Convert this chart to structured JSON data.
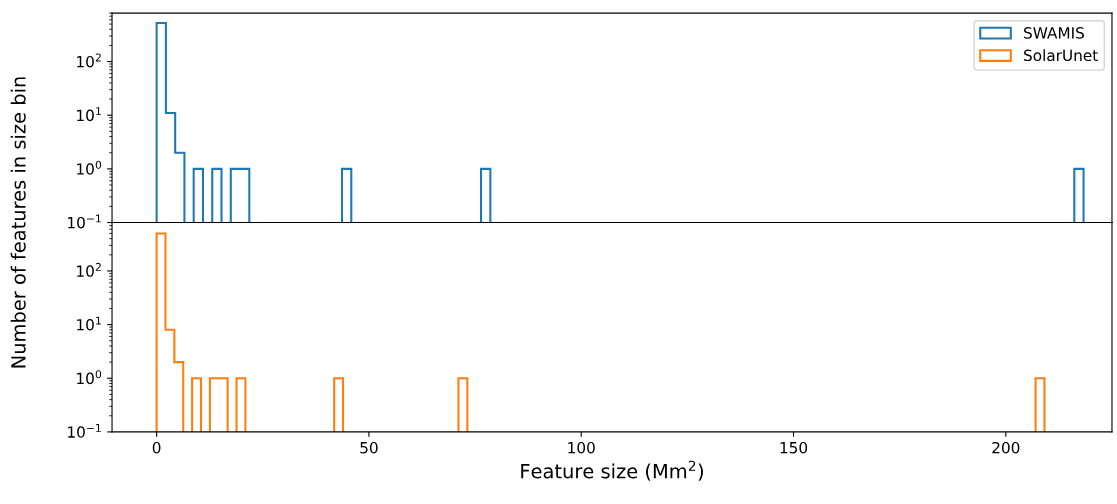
{
  "chart_data": [
    {
      "type": "histogram",
      "ylabel": "Number of features in size bin",
      "log": "y",
      "xlim": [
        -10.5,
        225
      ],
      "xticks": [
        0,
        50,
        100,
        150,
        200
      ],
      "ylim": [
        0.1,
        800
      ],
      "yticks": [
        {
          "value": 0.1,
          "label": "10$^{−1}$"
        },
        {
          "value": 1,
          "label": "10$^{0}$"
        },
        {
          "value": 10,
          "label": "10$^{1}$"
        },
        {
          "value": 100,
          "label": "10$^{2}$"
        }
      ],
      "tick_labels": "y",
      "legend": "top right",
      "bins": [
        0,
        2.18,
        4.37,
        6.55,
        8.73,
        10.92,
        13.1,
        15.28,
        17.47,
        19.65,
        21.83,
        43.66,
        45.85,
        76.41,
        78.6,
        216.13,
        218.31
      ],
      "series": [
        {
          "name": "SWAMIS",
          "color": "#1f77b4",
          "values": [
            525,
            11,
            2,
            null,
            1,
            null,
            1,
            null,
            1,
            1,
            null,
            1,
            null,
            1,
            null,
            1
          ]
        }
      ]
    },
    {
      "type": "histogram",
      "xlabel": "Feature size (Mm$^{2}$)",
      "log": "y",
      "xlim": [
        -10.5,
        225
      ],
      "xticks": [
        0,
        50,
        100,
        150,
        200
      ],
      "ylim": [
        0.1,
        800
      ],
      "yticks": [
        {
          "value": 0.1,
          "label": "10$^{−1}$"
        },
        {
          "value": 1,
          "label": "10$^{0}$"
        },
        {
          "value": 10,
          "label": "10$^{1}$"
        },
        {
          "value": 100,
          "label": "10$^{2}$"
        }
      ],
      "bins": [
        0,
        2.09,
        4.18,
        6.27,
        8.36,
        10.46,
        12.55,
        14.64,
        16.73,
        18.82,
        20.91,
        41.82,
        43.91,
        71.09,
        73.18,
        207.01,
        209.1
      ],
      "series": [
        {
          "name": "SolarUnet",
          "color": "#ff7f0e",
          "values": [
            500,
            8,
            2,
            null,
            1,
            null,
            1,
            1,
            null,
            1,
            null,
            1,
            null,
            1,
            null,
            1
          ]
        }
      ]
    }
  ]
}
